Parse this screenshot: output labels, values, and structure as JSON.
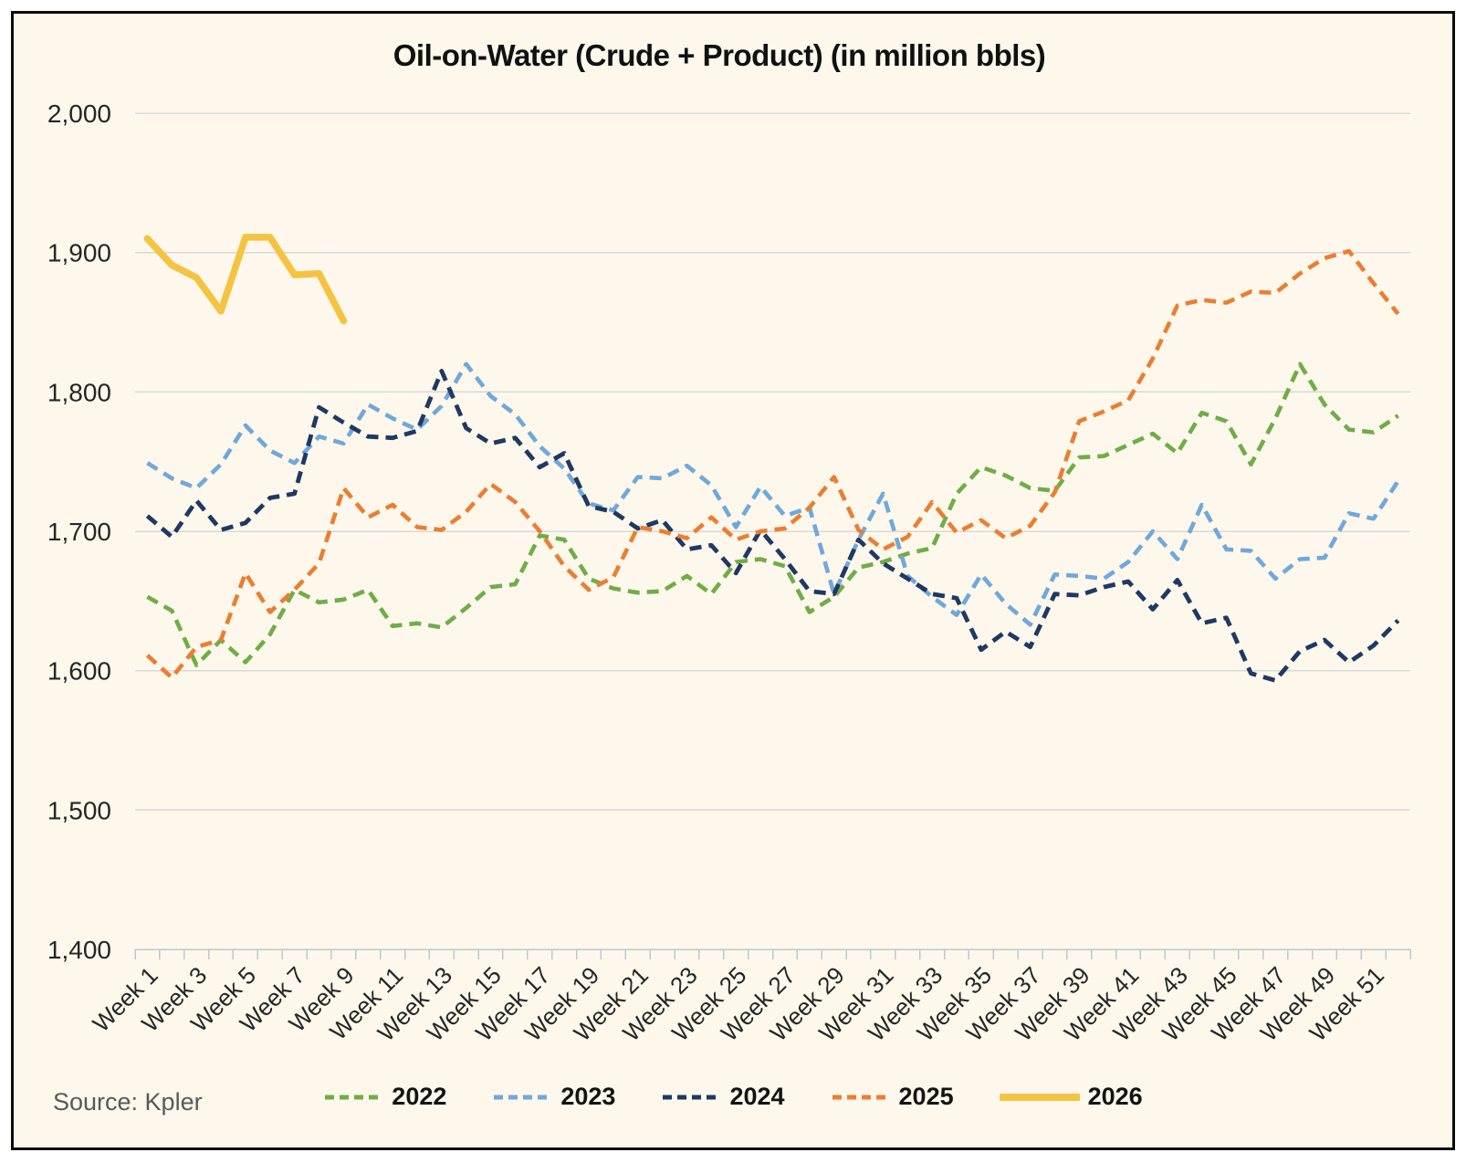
{
  "title_text": "Oil-on-Water (Crude + Product) (in million bbls)",
  "source": "Source: Kpler",
  "colors": {
    "background": "#fdf8eb",
    "frame_border": "#0c0c0c",
    "gridline": "#d9d9d9",
    "axis": "#c0c6cf",
    "text": "#262626",
    "source_text": "#595959"
  },
  "chart_data": {
    "type": "line",
    "title": "Oil-on-Water (Crude + Product) (in million bbls)",
    "xlabel": "",
    "ylabel": "",
    "grid": "horizontal",
    "x_axis": {
      "weeks": 52,
      "label_every": 2,
      "tick_labels": [
        "Week 1",
        "Week 3",
        "Week 5",
        "Week 7",
        "Week 9",
        "Week 11",
        "Week 13",
        "Week 15",
        "Week 17",
        "Week 19",
        "Week 21",
        "Week 23",
        "Week 25",
        "Week 27",
        "Week 29",
        "Week 31",
        "Week 33",
        "Week 35",
        "Week 37",
        "Week 39",
        "Week 41",
        "Week 43",
        "Week 45",
        "Week 47",
        "Week 49",
        "Week 51"
      ]
    },
    "y_axis": {
      "min": 1400,
      "max": 2000,
      "step": 100,
      "tick_labels": [
        "1,400",
        "1,500",
        "1,600",
        "1,700",
        "1,800",
        "1,900",
        "2,000"
      ]
    },
    "legend": {
      "position": "bottom",
      "entries": [
        "2022",
        "2023",
        "2024",
        "2025",
        "2026"
      ]
    },
    "series": [
      {
        "name": "2022",
        "color": "#70AD47",
        "style": "dashed",
        "width": 4.6,
        "values": [
          1653,
          1643,
          1604,
          1622,
          1606,
          1626,
          1658,
          1649,
          1651,
          1658,
          1632,
          1634,
          1631,
          1645,
          1660,
          1662,
          1697,
          1694,
          1666,
          1659,
          1656,
          1657,
          1668,
          1655,
          1678,
          1680,
          1675,
          1642,
          1653,
          1674,
          1678,
          1684,
          1688,
          1727,
          1746,
          1740,
          1731,
          1729,
          1753,
          1754,
          1762,
          1770,
          1756,
          1785,
          1779,
          1748,
          1781,
          1820,
          1791,
          1773,
          1771,
          1783
        ]
      },
      {
        "name": "2023",
        "color": "#6FA8DC",
        "style": "dashed",
        "width": 4.6,
        "values": [
          1749,
          1738,
          1731,
          1748,
          1776,
          1758,
          1749,
          1768,
          1763,
          1791,
          1781,
          1773,
          1790,
          1820,
          1797,
          1784,
          1761,
          1745,
          1720,
          1715,
          1739,
          1738,
          1747,
          1733,
          1703,
          1732,
          1711,
          1717,
          1655,
          1694,
          1727,
          1668,
          1653,
          1640,
          1669,
          1648,
          1633,
          1669,
          1668,
          1666,
          1678,
          1700,
          1680,
          1719,
          1687,
          1686,
          1666,
          1680,
          1681,
          1713,
          1709,
          1736
        ]
      },
      {
        "name": "2024",
        "color": "#1F3864",
        "style": "dashed",
        "width": 4.8,
        "values": [
          1711,
          1696,
          1722,
          1701,
          1706,
          1724,
          1727,
          1789,
          1778,
          1768,
          1767,
          1772,
          1815,
          1774,
          1763,
          1767,
          1746,
          1756,
          1718,
          1714,
          1702,
          1708,
          1687,
          1690,
          1670,
          1701,
          1680,
          1657,
          1655,
          1694,
          1677,
          1666,
          1655,
          1652,
          1615,
          1628,
          1617,
          1655,
          1654,
          1660,
          1664,
          1644,
          1665,
          1634,
          1638,
          1598,
          1593,
          1614,
          1622,
          1606,
          1618,
          1636
        ]
      },
      {
        "name": "2025",
        "color": "#ED7D31",
        "style": "dashed",
        "width": 4.6,
        "values": [
          1611,
          1595,
          1617,
          1622,
          1670,
          1642,
          1658,
          1677,
          1731,
          1710,
          1719,
          1703,
          1701,
          1714,
          1734,
          1721,
          1700,
          1675,
          1658,
          1667,
          1703,
          1700,
          1695,
          1710,
          1694,
          1700,
          1702,
          1717,
          1739,
          1701,
          1687,
          1696,
          1721,
          1699,
          1708,
          1695,
          1704,
          1728,
          1779,
          1786,
          1794,
          1824,
          1862,
          1866,
          1864,
          1872,
          1871,
          1885,
          1896,
          1901,
          1878,
          1856
        ]
      },
      {
        "name": "2026",
        "color": "#F5C342",
        "style": "solid",
        "width": 7.5,
        "values": [
          1910,
          1891,
          1882,
          1858,
          1911,
          1911,
          1884,
          1885,
          1851
        ]
      }
    ]
  }
}
